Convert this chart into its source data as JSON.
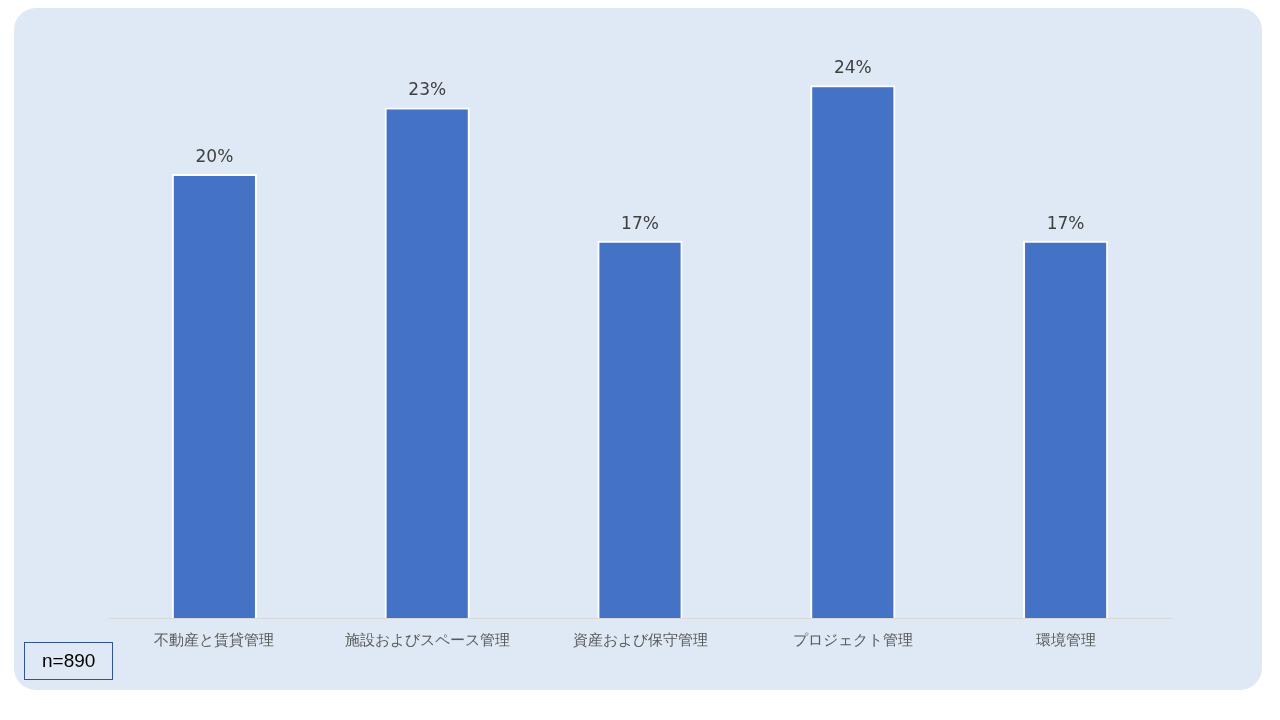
{
  "chart_data": {
    "type": "bar",
    "categories": [
      "不動産と賃貸管理",
      "施設およびスペース管理",
      "資産および保守管理",
      "プロジェクト管理",
      "環境管理"
    ],
    "values": [
      20,
      23,
      17,
      24,
      17
    ],
    "value_labels": [
      "20%",
      "23%",
      "17%",
      "24%",
      "17%"
    ],
    "color": "#4472c4",
    "tick_labels": "x",
    "annotations": [
      "n=890"
    ],
    "legend": false,
    "grid": false
  }
}
